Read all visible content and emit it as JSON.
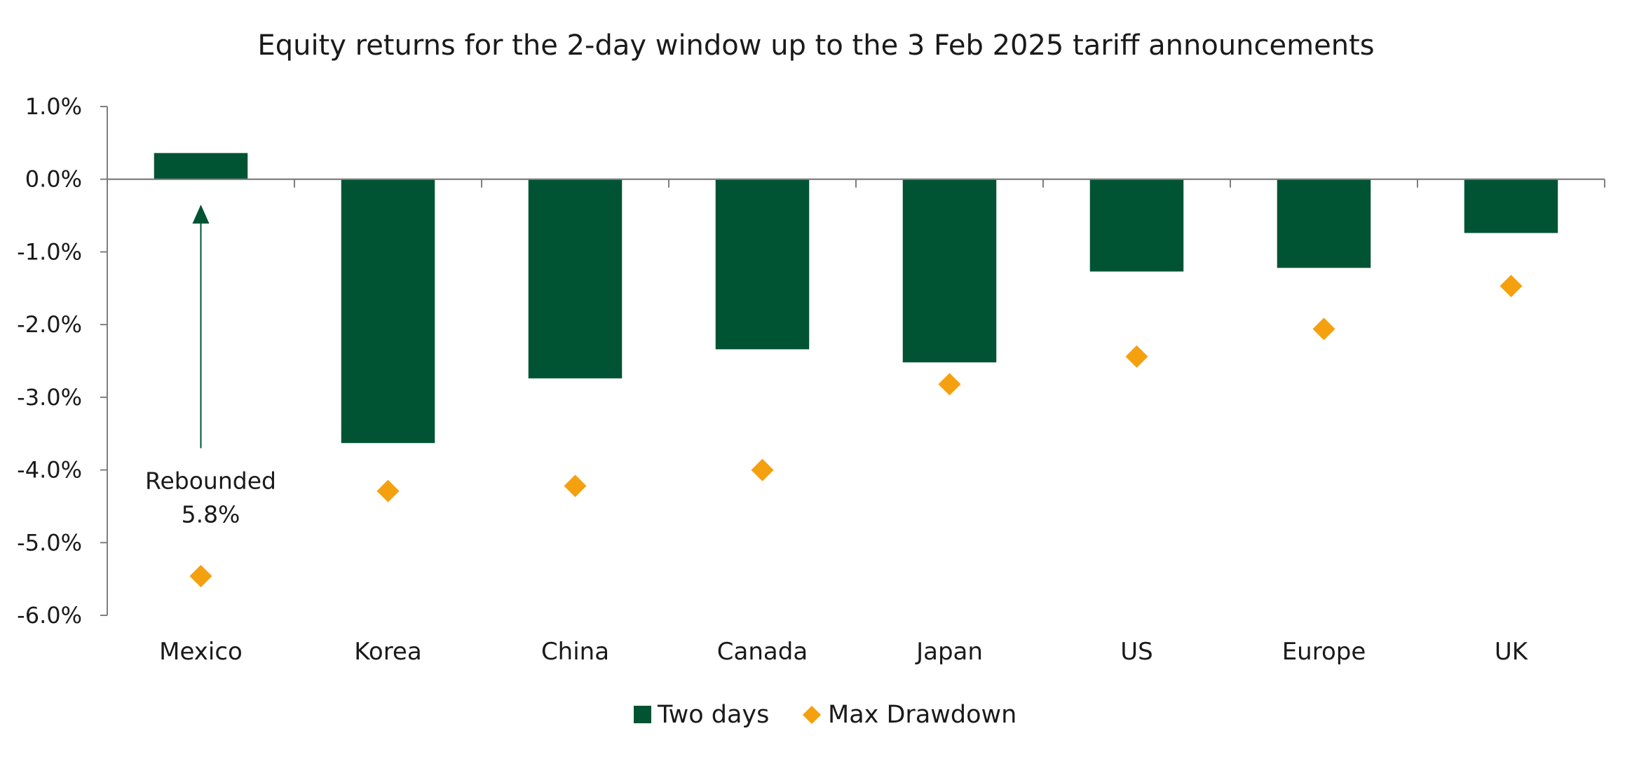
{
  "chart_data": {
    "type": "bar",
    "title": "Equity returns for the 2-day window up to the 3 Feb 2025 tariff announcements",
    "categories": [
      "Mexico",
      "Korea",
      "China",
      "Canada",
      "Japan",
      "US",
      "Europe",
      "UK"
    ],
    "series": [
      {
        "name": "Two days",
        "kind": "bar",
        "values": [
          0.36,
          -3.63,
          -2.74,
          -2.34,
          -2.52,
          -1.27,
          -1.22,
          -0.74
        ]
      },
      {
        "name": "Max Drawdown",
        "kind": "marker",
        "values": [
          -5.46,
          -4.29,
          -4.22,
          -4.0,
          -2.82,
          -2.44,
          -2.06,
          -1.47
        ]
      }
    ],
    "ylim": [
      -6,
      1
    ],
    "yticks": [
      1,
      0,
      -1,
      -2,
      -3,
      -4,
      -5,
      -6
    ],
    "ytick_labels": [
      "1.0%",
      "0.0%",
      "-1.0%",
      "-2.0%",
      "-3.0%",
      "-4.0%",
      "-5.0%",
      "-6.0%"
    ],
    "xlabel": "",
    "ylabel": "",
    "legend_position": "bottom-center",
    "annotation": {
      "category": "Mexico",
      "lines": [
        "Rebounded",
        "5.8%"
      ],
      "arrow_from": -3.7,
      "arrow_to": -0.35
    },
    "colors": {
      "bar": "#005434",
      "marker": "#F5A00F",
      "axis": "#7f7f7f",
      "arrow": "#005434"
    }
  }
}
